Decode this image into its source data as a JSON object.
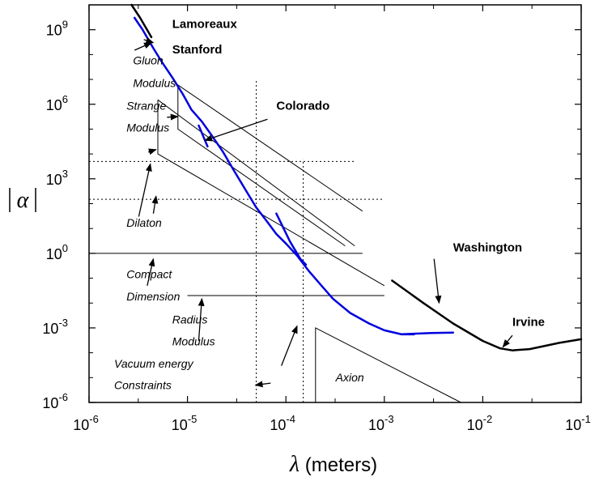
{
  "chart_data": {
    "type": "line",
    "x_scale": "log",
    "y_scale": "log",
    "xlim": [
      1e-06,
      0.1
    ],
    "ylim": [
      1e-06,
      10000000000.0
    ],
    "x_ticks": [
      {
        "v": 1e-06,
        "base": "10",
        "exp": "-6"
      },
      {
        "v": 1e-05,
        "base": "10",
        "exp": "-5"
      },
      {
        "v": 0.0001,
        "base": "10",
        "exp": "-4"
      },
      {
        "v": 0.001,
        "base": "10",
        "exp": "-3"
      },
      {
        "v": 0.01,
        "base": "10",
        "exp": "-2"
      },
      {
        "v": 0.1,
        "base": "10",
        "exp": "-1"
      }
    ],
    "y_ticks": [
      {
        "v": 1e-06,
        "base": "10",
        "exp": "-6"
      },
      {
        "v": 0.001,
        "base": "10",
        "exp": "-3"
      },
      {
        "v": 1.0,
        "base": "10",
        "exp": "0"
      },
      {
        "v": 1000.0,
        "base": "10",
        "exp": "3"
      },
      {
        "v": 1000000.0,
        "base": "10",
        "exp": "6"
      },
      {
        "v": 1000000000.0,
        "base": "10",
        "exp": "9"
      }
    ],
    "xlabel_symbol": "λ",
    "xlabel_text": "(meters)",
    "ylabel_symbol": "α",
    "series": [
      {
        "name": "Lamoreaux",
        "color": "#000000",
        "width": 2.5,
        "points": [
          [
            2.7e-06,
            10000000000.0
          ],
          [
            3.3e-06,
            3000000000.0
          ],
          [
            4.3e-06,
            500000000.0
          ]
        ]
      },
      {
        "name": "Stanford",
        "color": "#0000dd",
        "width": 2.5,
        "points": [
          [
            2.9e-06,
            3000000000.0
          ],
          [
            3.5e-06,
            1000000000.0
          ],
          [
            4.5e-06,
            180000000.0
          ],
          [
            5.5e-06,
            50000000.0
          ],
          [
            7e-06,
            12000000.0
          ],
          [
            9e-06,
            2500000.0
          ],
          [
            1.1e-05,
            600000.0
          ],
          [
            1.4e-05,
            200000.0
          ],
          [
            1.8e-05,
            50000.0
          ],
          [
            2.3e-05,
            12000.0
          ],
          [
            3e-05,
            2000.0
          ],
          [
            4e-05,
            300
          ],
          [
            5e-05,
            70
          ],
          [
            6.5e-05,
            18
          ],
          [
            8e-05,
            6
          ],
          [
            0.0001,
            2.5
          ],
          [
            0.00013,
            0.8
          ],
          [
            0.00017,
            0.2
          ],
          [
            0.00023,
            0.05
          ],
          [
            0.0003,
            0.015
          ],
          [
            0.00045,
            0.004
          ],
          [
            0.0007,
            0.0015
          ],
          [
            0.001,
            0.0008
          ],
          [
            0.0015,
            0.00055
          ],
          [
            0.002,
            0.00055
          ]
        ]
      },
      {
        "name": "Colorado",
        "color": "#0000dd",
        "width": 2.5,
        "points": [
          [
            1.3e-05,
            140000.0
          ],
          [
            1.6e-05,
            20000.0
          ]
        ]
      },
      {
        "name": "Colorado-2",
        "color": "#0000dd",
        "width": 2.5,
        "points": [
          [
            8e-05,
            40
          ],
          [
            0.00011,
            3
          ],
          [
            0.00014,
            0.6
          ],
          [
            0.00016,
            0.35
          ]
        ]
      },
      {
        "name": "Washington",
        "color": "#0000dd",
        "width": 2.5,
        "points": [
          [
            0.0015,
            0.00056
          ],
          [
            0.003,
            0.00062
          ],
          [
            0.005,
            0.00065
          ]
        ]
      },
      {
        "name": "Irvine",
        "color": "#000000",
        "width": 2.5,
        "points": [
          [
            0.0012,
            0.08
          ],
          [
            0.0025,
            0.01
          ],
          [
            0.005,
            0.0015
          ],
          [
            0.01,
            0.0003
          ],
          [
            0.015,
            0.00015
          ],
          [
            0.02,
            0.000125
          ],
          [
            0.03,
            0.00014
          ],
          [
            0.06,
            0.00025
          ],
          [
            0.1,
            0.00035
          ]
        ]
      }
    ],
    "theory_lines": [
      {
        "name": "Gluon Modulus",
        "points": [
          [
            8e-06,
            6000000.0
          ],
          [
            8e-06,
            100000.0
          ],
          [
            0.0004,
            2
          ]
        ]
      },
      {
        "name": "Gluon Modulus-upper",
        "points": [
          [
            8e-06,
            6000000.0
          ],
          [
            0.0006,
            50
          ]
        ]
      },
      {
        "name": "Strange Modulus",
        "points": [
          [
            5e-06,
            1500000.0
          ],
          [
            5e-06,
            10000.0
          ],
          [
            0.001,
            0.05
          ]
        ]
      },
      {
        "name": "Strange Modulus-upper",
        "points": [
          [
            5e-06,
            1500000.0
          ],
          [
            0.0005,
            2
          ]
        ]
      },
      {
        "name": "Dilaton-upper",
        "points": [
          [
            1e-06,
            5000.0
          ],
          [
            0.0005,
            5000.0
          ]
        ],
        "dotted": true
      },
      {
        "name": "Dilaton-lower",
        "points": [
          [
            1e-06,
            150
          ],
          [
            0.001,
            150
          ]
        ],
        "dotted": true
      },
      {
        "name": "Compact Dimension",
        "points": [
          [
            1e-06,
            1
          ],
          [
            0.0006,
            1
          ]
        ]
      },
      {
        "name": "Radius Modulus",
        "points": [
          [
            1e-05,
            0.02
          ],
          [
            0.001,
            0.02
          ]
        ]
      },
      {
        "name": "Vacuum energy 1",
        "points": [
          [
            5e-05,
            1e-06
          ],
          [
            5e-05,
            10000000.0
          ]
        ],
        "dotted": true
      },
      {
        "name": "Vacuum energy 2",
        "points": [
          [
            0.00015,
            1e-06
          ],
          [
            0.00015,
            6000.0
          ]
        ],
        "dotted": true
      },
      {
        "name": "Axion",
        "points": [
          [
            0.0002,
            1e-06
          ],
          [
            0.0002,
            0.001
          ],
          [
            0.006,
            1e-06
          ]
        ]
      }
    ],
    "labels": [
      {
        "text": "Lamoreaux",
        "style": "bold",
        "x": 7e-06,
        "y": 1200000000.0
      },
      {
        "text": "Stanford",
        "style": "bold",
        "x": 7e-06,
        "y": 110000000.0
      },
      {
        "text": "Colorado",
        "style": "bold",
        "x": 8e-05,
        "y": 600000.0
      },
      {
        "text": "Washington",
        "style": "bold",
        "x": 0.005,
        "y": 1.2
      },
      {
        "text": "Irvine",
        "style": "bold",
        "x": 0.02,
        "y": 0.0012
      },
      {
        "text": "Gluon",
        "style": "italic",
        "x": 2.8e-06,
        "y": 40000000.0
      },
      {
        "text": "Modulus",
        "style": "italic",
        "x": 2.8e-06,
        "y": 5000000.0
      },
      {
        "text": "Strange",
        "style": "italic",
        "x": 2.4e-06,
        "y": 600000.0
      },
      {
        "text": "Modulus",
        "style": "italic",
        "x": 2.4e-06,
        "y": 80000.0
      },
      {
        "text": "Dilaton",
        "style": "italic",
        "x": 2.4e-06,
        "y": 12
      },
      {
        "text": "Compact",
        "style": "italic",
        "x": 2.4e-06,
        "y": 0.1
      },
      {
        "text": "Dimension",
        "style": "italic",
        "x": 2.4e-06,
        "y": 0.013
      },
      {
        "text": "Radius",
        "style": "italic",
        "x": 7e-06,
        "y": 0.0015
      },
      {
        "text": "Modulus",
        "style": "italic",
        "x": 7e-06,
        "y": 0.0002
      },
      {
        "text": "Vacuum energy",
        "style": "italic",
        "x": 1.8e-06,
        "y": 2.5e-05
      },
      {
        "text": "Constraints",
        "style": "italic",
        "x": 1.8e-06,
        "y": 3.5e-06
      },
      {
        "text": "Axion",
        "style": "italic",
        "x": 0.00032,
        "y": 7e-06
      }
    ],
    "arrows": [
      {
        "from": [
          3.6e-06,
          400000000.0
        ],
        "to": [
          4.5e-06,
          300000000.0
        ]
      },
      {
        "from": [
          2.9e-06,
          150000000.0
        ],
        "to": [
          4.3e-06,
          300000000.0
        ]
      },
      {
        "from": [
          6.5e-05,
          250000.0
        ],
        "to": [
          1.5e-05,
          35000.0
        ]
      },
      {
        "from": [
          6.2e-06,
          300000.0
        ],
        "to": [
          8e-06,
          320000.0
        ]
      },
      {
        "from": [
          4e-06,
          12000.0
        ],
        "to": [
          4.8e-06,
          15000.0
        ]
      },
      {
        "from": [
          3.2e-06,
          30
        ],
        "to": [
          4.2e-06,
          4000.0
        ]
      },
      {
        "from": [
          4.5e-06,
          40
        ],
        "to": [
          4.8e-06,
          200
        ]
      },
      {
        "from": [
          3.9e-06,
          0.05
        ],
        "to": [
          4.5e-06,
          0.6
        ]
      },
      {
        "from": [
          1.3e-05,
          0.0003
        ],
        "to": [
          1.4e-05,
          0.015
        ]
      },
      {
        "from": [
          9e-05,
          3e-05
        ],
        "to": [
          0.00013,
          0.0012
        ]
      },
      {
        "from": [
          7e-05,
          6e-06
        ],
        "to": [
          4.9e-05,
          5e-06
        ]
      },
      {
        "from": [
          0.0032,
          0.6
        ],
        "to": [
          0.0036,
          0.01
        ]
      },
      {
        "from": [
          0.02,
          0.0005
        ],
        "to": [
          0.016,
          0.00017
        ]
      }
    ]
  }
}
